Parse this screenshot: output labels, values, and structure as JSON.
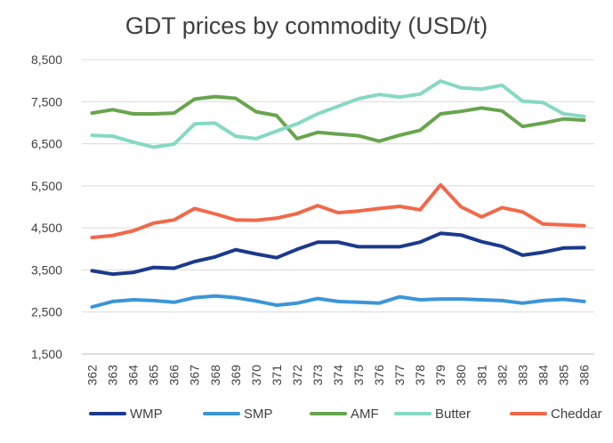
{
  "chart_data": {
    "type": "line",
    "title": "GDT prices by commodity (USD/t)",
    "xlabel": "",
    "ylabel": "",
    "ylim": [
      1500,
      8500
    ],
    "yticks": [
      1500,
      2500,
      3500,
      4500,
      5500,
      6500,
      7500,
      8500
    ],
    "ytick_labels": [
      "1,500",
      "2,500",
      "3,500",
      "4,500",
      "5,500",
      "6,500",
      "7,500",
      "8,500"
    ],
    "categories": [
      "362",
      "363",
      "364",
      "365",
      "366",
      "367",
      "368",
      "369",
      "370",
      "371",
      "372",
      "373",
      "374",
      "375",
      "376",
      "377",
      "378",
      "379",
      "380",
      "381",
      "382",
      "383",
      "384",
      "385",
      "386"
    ],
    "grid": "horizontal",
    "legend_position": "bottom",
    "series": [
      {
        "name": "WMP",
        "color": "#1b3a8c",
        "values": [
          3480,
          3400,
          3440,
          3560,
          3540,
          3700,
          3810,
          3980,
          3880,
          3790,
          3990,
          4160,
          4160,
          4050,
          4050,
          4050,
          4160,
          4370,
          4330,
          4170,
          4060,
          3850,
          3920,
          4020,
          4030
        ]
      },
      {
        "name": "SMP",
        "color": "#3b95d8",
        "values": [
          2620,
          2750,
          2790,
          2770,
          2730,
          2840,
          2880,
          2840,
          2760,
          2660,
          2710,
          2820,
          2750,
          2730,
          2710,
          2860,
          2790,
          2810,
          2810,
          2790,
          2770,
          2710,
          2770,
          2800,
          2750
        ]
      },
      {
        "name": "AMF",
        "color": "#68a54e",
        "values": [
          7230,
          7310,
          7210,
          7210,
          7230,
          7560,
          7620,
          7580,
          7260,
          7170,
          6620,
          6770,
          6730,
          6690,
          6560,
          6700,
          6820,
          7210,
          7270,
          7350,
          7280,
          6910,
          6990,
          7090,
          7060
        ]
      },
      {
        "name": "Butter",
        "color": "#86d9c3",
        "values": [
          6700,
          6680,
          6540,
          6420,
          6490,
          6970,
          6990,
          6680,
          6620,
          6800,
          6970,
          7210,
          7390,
          7570,
          7670,
          7610,
          7680,
          7990,
          7830,
          7800,
          7890,
          7510,
          7480,
          7210,
          7150
        ]
      },
      {
        "name": "Cheddar",
        "color": "#f2684a",
        "values": [
          4270,
          4320,
          4430,
          4610,
          4690,
          4960,
          4830,
          4690,
          4680,
          4730,
          4840,
          5030,
          4860,
          4900,
          4960,
          5010,
          4930,
          5520,
          5000,
          4760,
          4980,
          4880,
          4590,
          4570,
          4550
        ]
      }
    ]
  }
}
